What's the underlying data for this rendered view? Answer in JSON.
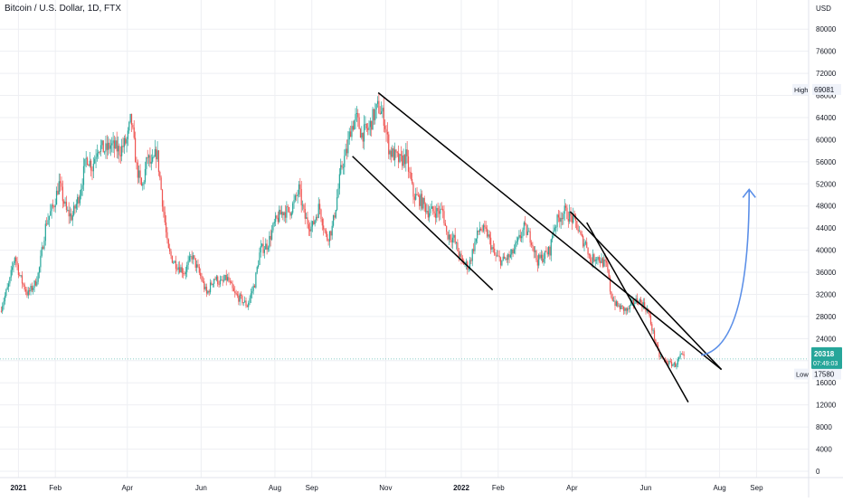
{
  "header": {
    "title": "Bitcoin / U.S. Dollar, 1D, FTX"
  },
  "y_axis": {
    "unit": "USD",
    "ticks": [
      "0",
      "4000",
      "8000",
      "12000",
      "16000",
      "20000",
      "24000",
      "28000",
      "32000",
      "36000",
      "40000",
      "44000",
      "48000",
      "52000",
      "56000",
      "60000",
      "64000",
      "68000",
      "72000",
      "76000",
      "80000"
    ]
  },
  "x_axis": {
    "labels": [
      {
        "text": "2021",
        "pos": 0.5,
        "bold": true
      },
      {
        "text": "Feb",
        "pos": 1.5
      },
      {
        "text": "Apr",
        "pos": 3.45
      },
      {
        "text": "Jun",
        "pos": 5.45
      },
      {
        "text": "Aug",
        "pos": 7.45
      },
      {
        "text": "Sep",
        "pos": 8.45
      },
      {
        "text": "Nov",
        "pos": 10.45
      },
      {
        "text": "2022",
        "pos": 12.5,
        "bold": true
      },
      {
        "text": "Feb",
        "pos": 13.5
      },
      {
        "text": "Apr",
        "pos": 15.5
      },
      {
        "text": "Jun",
        "pos": 17.5
      },
      {
        "text": "Aug",
        "pos": 19.5
      },
      {
        "text": "Sep",
        "pos": 20.5
      }
    ]
  },
  "markers": {
    "high": {
      "label": "High",
      "value": "69081"
    },
    "low": {
      "label": "Low",
      "value": "17580"
    },
    "last": {
      "price": "20318",
      "countdown": "07:49:03"
    }
  },
  "colors": {
    "up": "#26a69a",
    "down": "#ef5350",
    "trendline": "#000000",
    "projection_arrow": "#5b8fe8",
    "last_price_bg": "#26a69a",
    "grid": "#eeeff3"
  },
  "chart_data": {
    "type": "candlestick",
    "symbol": "Bitcoin / U.S. Dollar",
    "interval": "1D",
    "exchange": "FTX",
    "x_unit": "months since Jan 2021",
    "ylim": [
      0,
      82000
    ],
    "xlim": [
      0,
      21.6
    ],
    "closes": [
      [
        0.0,
        29000
      ],
      [
        0.25,
        34000
      ],
      [
        0.4,
        39000
      ],
      [
        0.55,
        35000
      ],
      [
        0.75,
        32000
      ],
      [
        0.95,
        34000
      ],
      [
        1.05,
        36000
      ],
      [
        1.25,
        45000
      ],
      [
        1.45,
        48000
      ],
      [
        1.6,
        52000
      ],
      [
        1.8,
        47000
      ],
      [
        1.95,
        46000
      ],
      [
        2.15,
        50000
      ],
      [
        2.35,
        57000
      ],
      [
        2.5,
        55000
      ],
      [
        2.65,
        59000
      ],
      [
        2.85,
        58000
      ],
      [
        3.0,
        59000
      ],
      [
        3.25,
        58000
      ],
      [
        3.45,
        60000
      ],
      [
        3.55,
        64000
      ],
      [
        3.7,
        55000
      ],
      [
        3.85,
        51000
      ],
      [
        4.0,
        57000
      ],
      [
        4.1,
        55000
      ],
      [
        4.25,
        58000
      ],
      [
        4.4,
        49000
      ],
      [
        4.55,
        40000
      ],
      [
        4.7,
        38000
      ],
      [
        4.85,
        37000
      ],
      [
        5.0,
        36000
      ],
      [
        5.2,
        39000
      ],
      [
        5.45,
        35000
      ],
      [
        5.6,
        32000
      ],
      [
        5.8,
        35000
      ],
      [
        6.0,
        34000
      ],
      [
        6.15,
        35000
      ],
      [
        6.35,
        32000
      ],
      [
        6.55,
        31000
      ],
      [
        6.7,
        30000
      ],
      [
        6.9,
        34000
      ],
      [
        7.05,
        40000
      ],
      [
        7.25,
        41000
      ],
      [
        7.45,
        45000
      ],
      [
        7.65,
        47000
      ],
      [
        7.85,
        47000
      ],
      [
        8.0,
        49000
      ],
      [
        8.1,
        51000
      ],
      [
        8.25,
        46000
      ],
      [
        8.45,
        44000
      ],
      [
        8.65,
        48000
      ],
      [
        8.85,
        42000
      ],
      [
        9.0,
        44000
      ],
      [
        9.1,
        48000
      ],
      [
        9.25,
        55000
      ],
      [
        9.4,
        58000
      ],
      [
        9.5,
        62000
      ],
      [
        9.65,
        64000
      ],
      [
        9.8,
        61000
      ],
      [
        10.0,
        62000
      ],
      [
        10.1,
        64000
      ],
      [
        10.25,
        66000
      ],
      [
        10.4,
        64000
      ],
      [
        10.55,
        58000
      ],
      [
        10.7,
        57000
      ],
      [
        10.85,
        56000
      ],
      [
        11.0,
        57000
      ],
      [
        11.2,
        50000
      ],
      [
        11.4,
        49000
      ],
      [
        11.6,
        47000
      ],
      [
        11.8,
        47000
      ],
      [
        12.0,
        47000
      ],
      [
        12.1,
        43000
      ],
      [
        12.3,
        42000
      ],
      [
        12.5,
        38000
      ],
      [
        12.7,
        37000
      ],
      [
        12.85,
        41000
      ],
      [
        13.0,
        44000
      ],
      [
        13.2,
        43000
      ],
      [
        13.4,
        39000
      ],
      [
        13.6,
        38000
      ],
      [
        13.85,
        39000
      ],
      [
        14.0,
        41000
      ],
      [
        14.2,
        44000
      ],
      [
        14.4,
        42000
      ],
      [
        14.55,
        38000
      ],
      [
        14.75,
        39000
      ],
      [
        14.9,
        40000
      ],
      [
        15.0,
        44000
      ],
      [
        15.15,
        46000
      ],
      [
        15.3,
        47000
      ],
      [
        15.45,
        46000
      ],
      [
        15.6,
        45000
      ],
      [
        15.75,
        42000
      ],
      [
        15.9,
        41000
      ],
      [
        16.0,
        38000
      ],
      [
        16.15,
        39000
      ],
      [
        16.3,
        38000
      ],
      [
        16.45,
        37000
      ],
      [
        16.55,
        32000
      ],
      [
        16.7,
        30000
      ],
      [
        16.85,
        29500
      ],
      [
        17.0,
        29000
      ],
      [
        17.15,
        30500
      ],
      [
        17.3,
        31000
      ],
      [
        17.45,
        30000
      ],
      [
        17.55,
        29000
      ],
      [
        17.7,
        25000
      ],
      [
        17.85,
        21000
      ],
      [
        18.0,
        20000
      ],
      [
        18.15,
        19500
      ],
      [
        18.3,
        19200
      ],
      [
        18.45,
        21000
      ],
      [
        18.55,
        20300
      ]
    ],
    "high": 69081,
    "low": 17580,
    "last": 20318,
    "trendlines": [
      {
        "from": [
          10.25,
          68500
        ],
        "to": [
          19.55,
          18400
        ]
      },
      {
        "from": [
          9.55,
          57000
        ],
        "to": [
          13.35,
          32800
        ]
      },
      {
        "from": [
          15.45,
          47000
        ],
        "to": [
          19.55,
          18400
        ]
      },
      {
        "from": [
          15.9,
          45000
        ],
        "to": [
          18.65,
          12500
        ]
      }
    ],
    "projection_arrow": {
      "from": [
        19.0,
        21000
      ],
      "control": [
        20.3,
        22500
      ],
      "to": [
        20.3,
        51000
      ]
    }
  }
}
